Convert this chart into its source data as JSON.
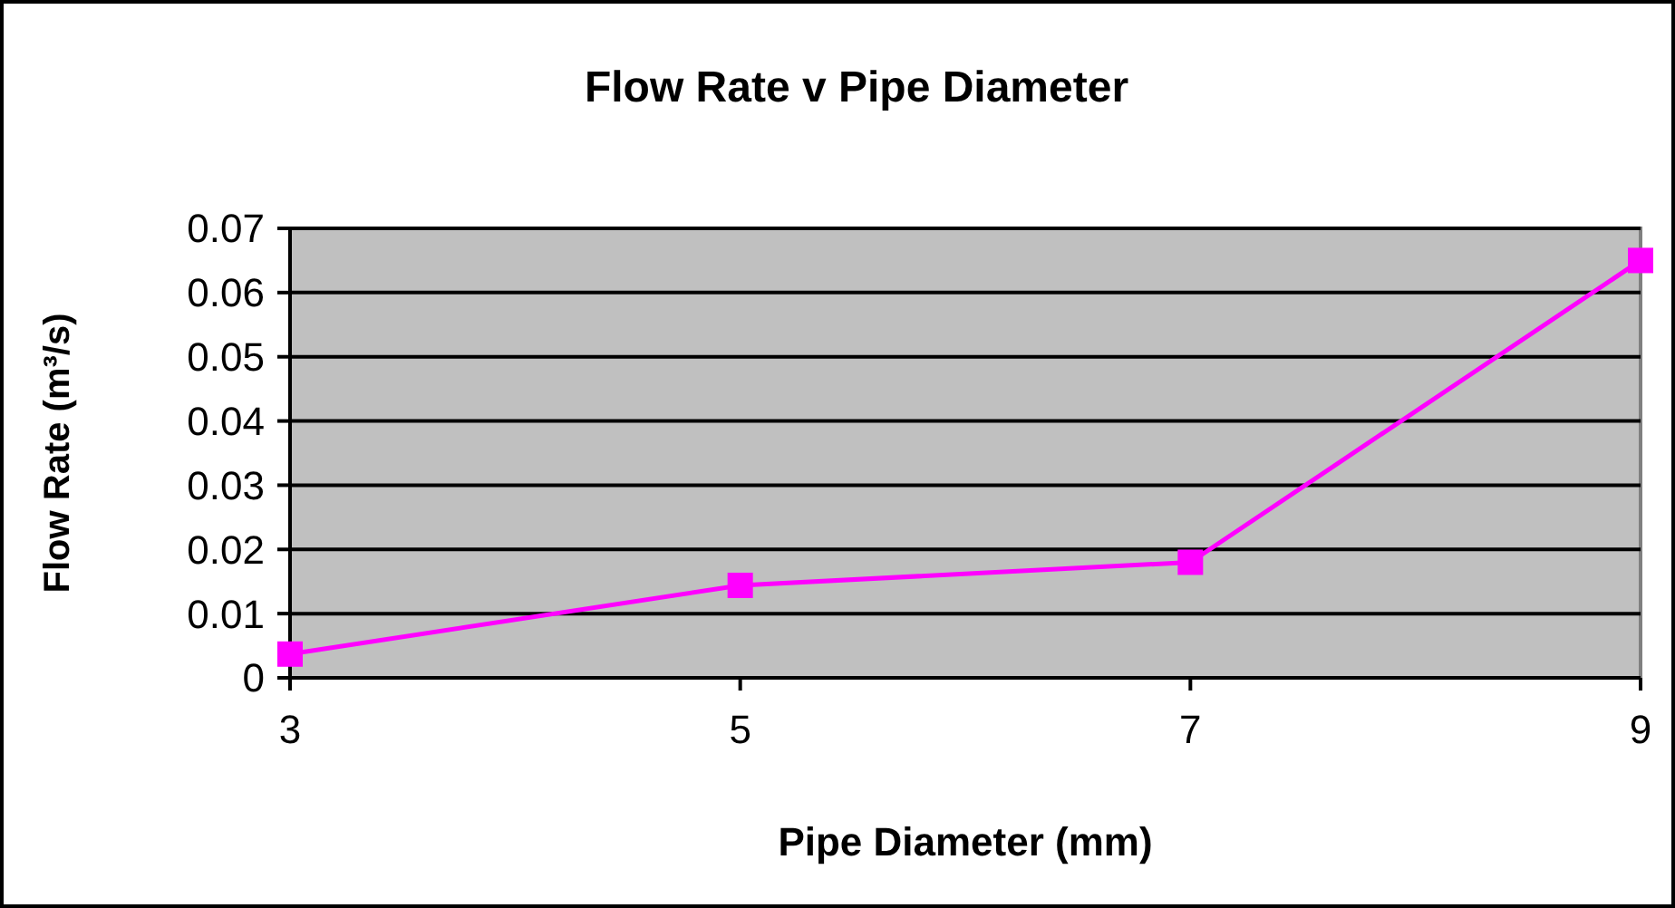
{
  "chart_data": {
    "type": "line",
    "title": "Flow Rate v Pipe Diameter",
    "xlabel": "Pipe Diameter (mm)",
    "ylabel": "Flow Rate (m³/s)",
    "x": [
      3,
      5,
      7,
      9
    ],
    "series": [
      {
        "color": "#ff00ff",
        "values": [
          0.0037,
          0.0144,
          0.018,
          0.065
        ]
      }
    ],
    "xlim": [
      3,
      9
    ],
    "xticks": [
      3,
      5,
      7,
      9
    ],
    "ylim": [
      0,
      0.07
    ],
    "yticks": [
      0,
      0.01,
      0.02,
      0.03,
      0.04,
      0.05,
      0.06,
      0.07
    ],
    "grid": "y",
    "marker": "square",
    "line_style": "solid"
  }
}
